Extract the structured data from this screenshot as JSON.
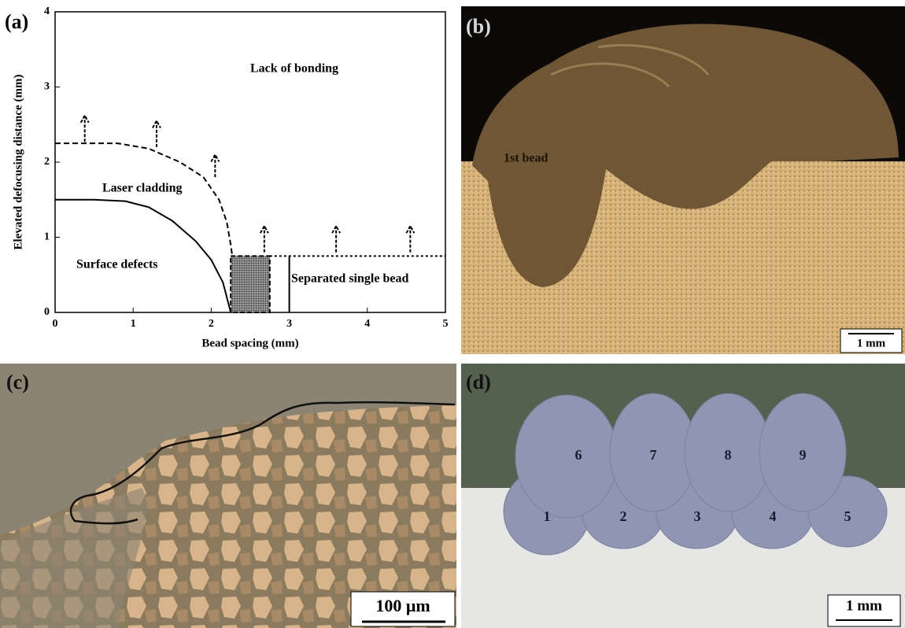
{
  "chart_data": {
    "type": "line",
    "panel_label": "(a)",
    "xlabel": "Bead spacing (mm)",
    "ylabel": "Elevated defocusing distance (mm)",
    "xlim": [
      0,
      5
    ],
    "ylim": [
      0,
      4
    ],
    "xticks": [
      0,
      1,
      2,
      3,
      4,
      5
    ],
    "yticks": [
      0,
      1,
      2,
      3,
      4
    ],
    "series": [
      {
        "color": "#000000",
        "style": "solid",
        "x": [
          0,
          0.5,
          0.9,
          1.2,
          1.5,
          1.8,
          2.0,
          2.15,
          2.25
        ],
        "values": [
          1.5,
          1.5,
          1.48,
          1.4,
          1.22,
          0.95,
          0.7,
          0.4,
          0
        ]
      },
      {
        "color": "#000000",
        "style": "dashed",
        "x": [
          0,
          0.8,
          1.2,
          1.6,
          1.9,
          2.1,
          2.2,
          2.25,
          2.27
        ],
        "values": [
          2.25,
          2.25,
          2.18,
          2.0,
          1.8,
          1.5,
          1.2,
          0.9,
          0.75
        ]
      },
      {
        "color": "#000000",
        "style": "dotted",
        "x": [
          2.75,
          5
        ],
        "values": [
          0.75,
          0.75
        ]
      },
      {
        "color": "#000000",
        "style": "solid",
        "x": [
          3,
          3
        ],
        "values": [
          0,
          0.75
        ]
      }
    ],
    "region": {
      "x": [
        2.25,
        2.75
      ],
      "y": [
        0,
        0.75
      ],
      "color": "#5a5a5a"
    },
    "arrows": {
      "x": [
        0.38,
        1.3,
        2.05,
        2.68,
        3.6,
        4.55
      ],
      "y0": [
        2.27,
        2.2,
        1.8,
        0.8,
        0.8,
        0.8
      ],
      "y1": [
        2.62,
        2.55,
        2.1,
        1.15,
        1.15,
        1.15
      ]
    },
    "annotations": [
      "Lack of bonding",
      "Laser cladding",
      "Surface defects",
      "Separated single bead"
    ]
  },
  "panels": [
    {
      "label": "(b)",
      "annotation": "1st bead",
      "scale_bar": "1 mm"
    },
    {
      "label": "(c)",
      "scale_bar": "100 μm"
    },
    {
      "label": "(d)",
      "bead_numbers": [
        "1",
        "2",
        "3",
        "4",
        "5",
        "6",
        "7",
        "8",
        "9"
      ],
      "scale_bar": "1 mm"
    }
  ]
}
